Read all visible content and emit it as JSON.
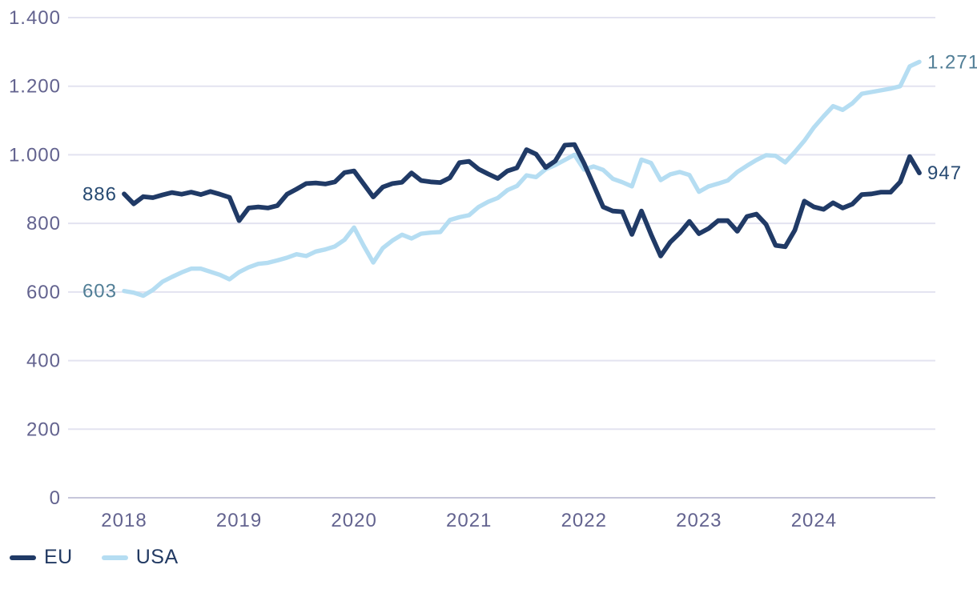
{
  "chart_data": {
    "type": "line",
    "title": "",
    "xlabel": "",
    "ylabel": "",
    "grid": "horizontal",
    "legend_position": "bottom-left",
    "x_axis": {
      "unit": "year",
      "years": [
        "2018",
        "2019",
        "2020",
        "2021",
        "2022",
        "2023",
        "2024"
      ],
      "points_per_year": 12
    },
    "y_axis": {
      "min": 0,
      "max": 1400,
      "step": 200,
      "tick_labels": [
        "0",
        "200",
        "400",
        "600",
        "800",
        "1.000",
        "1.200",
        "1.400"
      ]
    },
    "series": [
      {
        "name": "USA",
        "color": "#b5ddf2",
        "label_color": "#517e96",
        "start_label": "603",
        "end_label": "1.271",
        "values": [
          603,
          598,
          589,
          606,
          630,
          644,
          657,
          668,
          668,
          659,
          650,
          637,
          658,
          672,
          682,
          685,
          692,
          700,
          710,
          705,
          718,
          724,
          733,
          752,
          788,
          735,
          686,
          728,
          750,
          767,
          756,
          770,
          773,
          775,
          810,
          818,
          824,
          848,
          863,
          874,
          897,
          909,
          940,
          935,
          958,
          970,
          985,
          1000,
          957,
          966,
          956,
          930,
          920,
          908,
          986,
          976,
          926,
          943,
          950,
          941,
          892,
          908,
          916,
          925,
          950,
          968,
          985,
          999,
          997,
          978,
          1008,
          1041,
          1080,
          1112,
          1142,
          1131,
          1150,
          1178,
          1183,
          1188,
          1193,
          1200,
          1258,
          1271
        ]
      },
      {
        "name": "EU",
        "color": "#203a66",
        "label_color": "#274a72",
        "start_label": "886",
        "end_label": "947",
        "values": [
          886,
          857,
          878,
          875,
          883,
          890,
          885,
          891,
          884,
          893,
          885,
          876,
          808,
          845,
          848,
          845,
          852,
          885,
          900,
          916,
          918,
          915,
          921,
          948,
          953,
          915,
          877,
          906,
          916,
          920,
          947,
          925,
          921,
          919,
          933,
          977,
          981,
          958,
          944,
          931,
          953,
          962,
          1015,
          1002,
          963,
          982,
          1028,
          1030,
          975,
          912,
          848,
          836,
          834,
          768,
          836,
          768,
          705,
          745,
          772,
          806,
          770,
          785,
          808,
          808,
          777,
          820,
          827,
          797,
          736,
          732,
          780,
          865,
          848,
          841,
          860,
          845,
          856,
          884,
          886,
          891,
          891,
          921,
          995,
          947
        ]
      }
    ]
  },
  "legend": {
    "items": [
      {
        "label": "EU",
        "color": "#203a66"
      },
      {
        "label": "USA",
        "color": "#b5ddf2"
      }
    ]
  },
  "colors": {
    "background": "#ffffff",
    "grid_line": "#e3e3f0",
    "zero_line": "#c6c6da",
    "tick_label": "#63638f",
    "year_label": "#63638f",
    "legend_text": "#223a63"
  }
}
